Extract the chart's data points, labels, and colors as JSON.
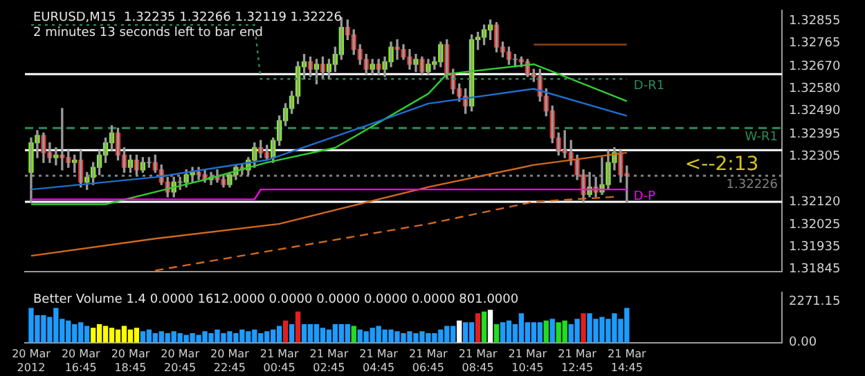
{
  "chart_data": [
    {
      "type": "candlestick",
      "title": "EURUSD,M15  1.32235 1.32266 1.32119 1.32226",
      "subtitle": "2 minutes 13 seconds left to bar end",
      "x": [
        "2012-03-20T14:45",
        "2012-03-20T15:00",
        "2012-03-20T15:15",
        "2012-03-20T15:30",
        "2012-03-20T15:45",
        "2012-03-20T16:00",
        "2012-03-20T16:15",
        "2012-03-20T16:30",
        "2012-03-20T16:45",
        "2012-03-20T17:00",
        "2012-03-20T17:15",
        "2012-03-20T17:30",
        "2012-03-20T17:45",
        "2012-03-20T18:00",
        "2012-03-20T18:15",
        "2012-03-20T18:30",
        "2012-03-20T18:45",
        "2012-03-20T19:00",
        "2012-03-20T19:15",
        "2012-03-20T19:30",
        "2012-03-20T19:45",
        "2012-03-20T20:00",
        "2012-03-20T20:15",
        "2012-03-20T20:30",
        "2012-03-20T20:45",
        "2012-03-20T21:00",
        "2012-03-20T21:15",
        "2012-03-20T21:30",
        "2012-03-20T21:45",
        "2012-03-20T22:00",
        "2012-03-20T22:15",
        "2012-03-20T22:30",
        "2012-03-20T22:45",
        "2012-03-20T23:00",
        "2012-03-20T23:15",
        "2012-03-20T23:30",
        "2012-03-20T23:45",
        "2012-03-21T00:00",
        "2012-03-21T00:15",
        "2012-03-21T00:30",
        "2012-03-21T00:45",
        "2012-03-21T01:00",
        "2012-03-21T01:15",
        "2012-03-21T01:30",
        "2012-03-21T01:45",
        "2012-03-21T02:00",
        "2012-03-21T02:15",
        "2012-03-21T02:30",
        "2012-03-21T02:45",
        "2012-03-21T03:00",
        "2012-03-21T03:15",
        "2012-03-21T03:30",
        "2012-03-21T03:45",
        "2012-03-21T04:00",
        "2012-03-21T04:15",
        "2012-03-21T04:30",
        "2012-03-21T04:45",
        "2012-03-21T05:00",
        "2012-03-21T05:15",
        "2012-03-21T05:30",
        "2012-03-21T05:45",
        "2012-03-21T06:00",
        "2012-03-21T06:15",
        "2012-03-21T06:30",
        "2012-03-21T06:45",
        "2012-03-21T07:00",
        "2012-03-21T07:15",
        "2012-03-21T07:30",
        "2012-03-21T07:45",
        "2012-03-21T08:00",
        "2012-03-21T08:15",
        "2012-03-21T08:30",
        "2012-03-21T08:45",
        "2012-03-21T09:00",
        "2012-03-21T09:15",
        "2012-03-21T09:30",
        "2012-03-21T09:45",
        "2012-03-21T10:00",
        "2012-03-21T10:15",
        "2012-03-21T10:30",
        "2012-03-21T10:45",
        "2012-03-21T11:00",
        "2012-03-21T11:15",
        "2012-03-21T11:30",
        "2012-03-21T11:45",
        "2012-03-21T12:00",
        "2012-03-21T12:15",
        "2012-03-21T12:30",
        "2012-03-21T12:45",
        "2012-03-21T13:00",
        "2012-03-21T13:15",
        "2012-03-21T13:30",
        "2012-03-21T13:45",
        "2012-03-21T14:00",
        "2012-03-21T14:15",
        "2012-03-21T14:30",
        "2012-03-21T14:45"
      ],
      "ohlc": [
        [
          1.3224,
          1.3238,
          1.3212,
          1.3236
        ],
        [
          1.3236,
          1.3241,
          1.323,
          1.3239
        ],
        [
          1.3239,
          1.324,
          1.3228,
          1.3232
        ],
        [
          1.3232,
          1.3236,
          1.3228,
          1.323
        ],
        [
          1.323,
          1.3234,
          1.3227,
          1.3231
        ],
        [
          1.3231,
          1.325,
          1.3225,
          1.323
        ],
        [
          1.323,
          1.3233,
          1.3226,
          1.3228
        ],
        [
          1.3228,
          1.3231,
          1.3224,
          1.3229
        ],
        [
          1.3229,
          1.3233,
          1.3218,
          1.322
        ],
        [
          1.322,
          1.3224,
          1.3217,
          1.3222
        ],
        [
          1.3222,
          1.3228,
          1.3219,
          1.3226
        ],
        [
          1.3226,
          1.3233,
          1.3223,
          1.3231
        ],
        [
          1.3231,
          1.3238,
          1.3228,
          1.3236
        ],
        [
          1.3236,
          1.3243,
          1.3233,
          1.324
        ],
        [
          1.324,
          1.3242,
          1.3229,
          1.3231
        ],
        [
          1.3231,
          1.3234,
          1.3224,
          1.3226
        ],
        [
          1.3226,
          1.3231,
          1.3224,
          1.3229
        ],
        [
          1.3229,
          1.3231,
          1.3223,
          1.3225
        ],
        [
          1.3225,
          1.323,
          1.3224,
          1.3228
        ],
        [
          1.3228,
          1.323,
          1.3226,
          1.3228
        ],
        [
          1.3228,
          1.3231,
          1.3224,
          1.3225
        ],
        [
          1.3225,
          1.3227,
          1.3219,
          1.322
        ],
        [
          1.322,
          1.3222,
          1.3214,
          1.3216
        ],
        [
          1.3216,
          1.3222,
          1.3214,
          1.322
        ],
        [
          1.322,
          1.3222,
          1.3217,
          1.322
        ],
        [
          1.322,
          1.3225,
          1.3218,
          1.3223
        ],
        [
          1.3223,
          1.3226,
          1.322,
          1.3224
        ],
        [
          1.3224,
          1.3226,
          1.3221,
          1.3223
        ],
        [
          1.3223,
          1.3225,
          1.322,
          1.3221
        ],
        [
          1.3221,
          1.3224,
          1.3219,
          1.3222
        ],
        [
          1.3222,
          1.3225,
          1.322,
          1.3221
        ],
        [
          1.3221,
          1.3223,
          1.3218,
          1.3219
        ],
        [
          1.3219,
          1.3224,
          1.3218,
          1.3223
        ],
        [
          1.3223,
          1.3227,
          1.3221,
          1.3226
        ],
        [
          1.3226,
          1.3227,
          1.3223,
          1.3225
        ],
        [
          1.3225,
          1.323,
          1.3223,
          1.3229
        ],
        [
          1.3229,
          1.3236,
          1.3226,
          1.3234
        ],
        [
          1.3234,
          1.3237,
          1.323,
          1.3232
        ],
        [
          1.3232,
          1.3235,
          1.3229,
          1.323
        ],
        [
          1.323,
          1.3238,
          1.3228,
          1.3237
        ],
        [
          1.3237,
          1.3247,
          1.3235,
          1.3245
        ],
        [
          1.3245,
          1.3252,
          1.3243,
          1.325
        ],
        [
          1.325,
          1.3257,
          1.3248,
          1.3255
        ],
        [
          1.3255,
          1.3269,
          1.3252,
          1.3267
        ],
        [
          1.3267,
          1.3272,
          1.3262,
          1.3269
        ],
        [
          1.3269,
          1.3271,
          1.3263,
          1.3266
        ],
        [
          1.3266,
          1.327,
          1.326,
          1.3268
        ],
        [
          1.3268,
          1.3271,
          1.3262,
          1.3265
        ],
        [
          1.3265,
          1.327,
          1.3262,
          1.3268
        ],
        [
          1.3268,
          1.3275,
          1.3265,
          1.3272
        ],
        [
          1.3272,
          1.3287,
          1.327,
          1.3283
        ],
        [
          1.3283,
          1.3286,
          1.3278,
          1.328
        ],
        [
          1.328,
          1.3282,
          1.3272,
          1.3274
        ],
        [
          1.3274,
          1.3276,
          1.3268,
          1.327
        ],
        [
          1.327,
          1.3272,
          1.3264,
          1.3266
        ],
        [
          1.3266,
          1.327,
          1.3264,
          1.3268
        ],
        [
          1.3268,
          1.327,
          1.3264,
          1.3266
        ],
        [
          1.3266,
          1.3271,
          1.3263,
          1.3269
        ],
        [
          1.3269,
          1.3277,
          1.3267,
          1.3275
        ],
        [
          1.3275,
          1.3278,
          1.327,
          1.3274
        ],
        [
          1.3274,
          1.3276,
          1.327,
          1.3271
        ],
        [
          1.3271,
          1.3274,
          1.3266,
          1.3268
        ],
        [
          1.3268,
          1.3272,
          1.3265,
          1.327
        ],
        [
          1.327,
          1.3271,
          1.3264,
          1.3265
        ],
        [
          1.3265,
          1.327,
          1.3264,
          1.3268
        ],
        [
          1.3268,
          1.3271,
          1.3266,
          1.3269
        ],
        [
          1.3269,
          1.3277,
          1.3267,
          1.3276
        ],
        [
          1.3276,
          1.3278,
          1.3262,
          1.3264
        ],
        [
          1.3264,
          1.3266,
          1.3256,
          1.3258
        ],
        [
          1.3258,
          1.326,
          1.3253,
          1.3255
        ],
        [
          1.3255,
          1.3258,
          1.3248,
          1.3251
        ],
        [
          1.3251,
          1.328,
          1.3249,
          1.3278
        ],
        [
          1.3278,
          1.3281,
          1.3274,
          1.3279
        ],
        [
          1.3279,
          1.3284,
          1.3276,
          1.3282
        ],
        [
          1.3282,
          1.3286,
          1.3278,
          1.3284
        ],
        [
          1.3284,
          1.3285,
          1.3273,
          1.3275
        ],
        [
          1.3275,
          1.3277,
          1.3271,
          1.3273
        ],
        [
          1.3273,
          1.3275,
          1.3268,
          1.327
        ],
        [
          1.327,
          1.3272,
          1.3267,
          1.327
        ],
        [
          1.327,
          1.3271,
          1.3267,
          1.3269
        ],
        [
          1.3269,
          1.327,
          1.3263,
          1.3264
        ],
        [
          1.3264,
          1.3266,
          1.3261,
          1.3263
        ],
        [
          1.3263,
          1.3266,
          1.3253,
          1.3255
        ],
        [
          1.3255,
          1.3258,
          1.3247,
          1.3249
        ],
        [
          1.3249,
          1.3251,
          1.3236,
          1.3238
        ],
        [
          1.3238,
          1.324,
          1.3231,
          1.3233
        ],
        [
          1.3233,
          1.3241,
          1.323,
          1.3232
        ],
        [
          1.3232,
          1.3237,
          1.3227,
          1.3229
        ],
        [
          1.3229,
          1.3231,
          1.3221,
          1.3223
        ],
        [
          1.3223,
          1.3225,
          1.3212,
          1.3215
        ],
        [
          1.3215,
          1.3224,
          1.3214,
          1.3218
        ],
        [
          1.3218,
          1.3222,
          1.3214,
          1.3216
        ],
        [
          1.3216,
          1.323,
          1.3215,
          1.3219
        ],
        [
          1.3219,
          1.3233,
          1.3217,
          1.3228
        ],
        [
          1.3228,
          1.3234,
          1.3225,
          1.3232
        ],
        [
          1.3232,
          1.3233,
          1.322,
          1.3223
        ],
        [
          1.32235,
          1.32266,
          1.32119,
          1.32226
        ]
      ],
      "series": [
        {
          "type": "line",
          "color": "#d2691e",
          "x": [
            "2012-03-20T14:45",
            "2012-03-20T19:45",
            "2012-03-21T00:45",
            "2012-03-21T06:45",
            "2012-03-21T11:00",
            "2012-03-21T14:45"
          ],
          "values": [
            1.319,
            1.3197,
            1.3203,
            1.3218,
            1.3227,
            1.3232
          ]
        },
        {
          "type": "line",
          "color": "#d2691e",
          "line_style": "dashed",
          "x": [
            "2012-03-20T19:45",
            "2012-03-21T06:45",
            "2012-03-21T11:00",
            "2012-03-21T14:15"
          ],
          "values": [
            1.3184,
            1.3203,
            1.3212,
            1.3214
          ]
        },
        {
          "type": "line",
          "color": "#32cd32",
          "x": [
            "2012-03-20T14:45",
            "2012-03-20T17:45",
            "2012-03-20T21:45",
            "2012-03-21T00:15",
            "2012-03-21T03:00",
            "2012-03-21T06:45",
            "2012-03-21T07:30",
            "2012-03-21T11:00",
            "2012-03-21T14:45"
          ],
          "values": [
            1.3211,
            1.3211,
            1.3221,
            1.3228,
            1.3234,
            1.3256,
            1.3264,
            1.3268,
            1.3253
          ]
        },
        {
          "type": "line",
          "color": "#1e6fd0",
          "x": [
            "2012-03-20T14:45",
            "2012-03-20T19:45",
            "2012-03-21T00:15",
            "2012-03-21T04:15",
            "2012-03-21T06:45",
            "2012-03-21T11:00",
            "2012-03-21T14:45"
          ],
          "values": [
            1.3217,
            1.3222,
            1.3229,
            1.3243,
            1.3252,
            1.3258,
            1.3247
          ]
        },
        {
          "type": "line",
          "name": "D-P",
          "color": "#ff00ff",
          "x": [
            "2012-03-20T14:45",
            "2012-03-20T23:45",
            "2012-03-21T00:00",
            "2012-03-21T14:45"
          ],
          "values": [
            1.3213,
            1.3213,
            1.3217,
            1.3217
          ]
        },
        {
          "type": "line",
          "name": "D-R1",
          "color": "#2e8b57",
          "line_style": "dotted",
          "x": [
            "2012-03-20T14:45",
            "2012-03-20T23:45",
            "2012-03-21T00:00",
            "2012-03-21T14:45"
          ],
          "values": [
            1.3284,
            1.3284,
            1.3262,
            1.3262
          ]
        },
        {
          "type": "line",
          "color": "#8b4513",
          "x": [
            "2012-03-21T11:00",
            "2012-03-21T14:45"
          ],
          "values": [
            1.3276,
            1.3276
          ]
        }
      ],
      "xlim": [
        "2012-03-20T14:30",
        "2012-03-21T21:00"
      ],
      "ylim": [
        1.31835,
        1.329
      ],
      "yticks": [
        1.32855,
        1.32765,
        {
          "value": 1.3267,
          "label": "1.32670"
        },
        {
          "value": 1.3258,
          "label": "1.32580"
        },
        {
          "value": 1.3249,
          "label": "1.32490"
        },
        1.32395,
        1.32305,
        {
          "value": 1.3212,
          "label": "1.32120"
        },
        1.32025,
        1.31935,
        1.31845
      ],
      "tick_labels": "y",
      "ref_lines": [
        {
          "axis": "y",
          "value": 1.3264,
          "color": "#ffffff"
        },
        {
          "axis": "y",
          "value": 1.3233,
          "color": "#ffffff"
        },
        {
          "axis": "y",
          "value": 1.3212,
          "color": "#ffffff"
        },
        {
          "axis": "y",
          "value": 1.3242,
          "label": "W-R1",
          "color": "#2e8b57",
          "line_style": "dashed"
        },
        {
          "axis": "y",
          "value": 1.32226,
          "label": "1.32226",
          "color": "#808080",
          "line_style": "dotted"
        }
      ],
      "annotations": [
        {
          "text": "<--2:13",
          "x": "2012-03-21T14:45",
          "y": 1.32226
        }
      ]
    },
    {
      "type": "bar",
      "title": "Better Volume 1.4 0.0000 1612.0000 0.0000 0.0000 0.0000 0.0000 801.0000",
      "x": [
        "2012-03-20T14:45",
        "2012-03-20T15:00",
        "2012-03-20T15:15",
        "2012-03-20T15:30",
        "2012-03-20T15:45",
        "2012-03-20T16:00",
        "2012-03-20T16:15",
        "2012-03-20T16:30",
        "2012-03-20T16:45",
        "2012-03-20T17:00",
        "2012-03-20T17:15",
        "2012-03-20T17:30",
        "2012-03-20T17:45",
        "2012-03-20T18:00",
        "2012-03-20T18:15",
        "2012-03-20T18:30",
        "2012-03-20T18:45",
        "2012-03-20T19:00",
        "2012-03-20T19:15",
        "2012-03-20T19:30",
        "2012-03-20T19:45",
        "2012-03-20T20:00",
        "2012-03-20T20:15",
        "2012-03-20T20:30",
        "2012-03-20T20:45",
        "2012-03-20T21:00",
        "2012-03-20T21:15",
        "2012-03-20T21:30",
        "2012-03-20T21:45",
        "2012-03-20T22:00",
        "2012-03-20T22:15",
        "2012-03-20T22:30",
        "2012-03-20T22:45",
        "2012-03-20T23:00",
        "2012-03-20T23:15",
        "2012-03-20T23:30",
        "2012-03-20T23:45",
        "2012-03-21T00:00",
        "2012-03-21T00:15",
        "2012-03-21T00:30",
        "2012-03-21T00:45",
        "2012-03-21T01:00",
        "2012-03-21T01:15",
        "2012-03-21T01:30",
        "2012-03-21T01:45",
        "2012-03-21T02:00",
        "2012-03-21T02:15",
        "2012-03-21T02:30",
        "2012-03-21T02:45",
        "2012-03-21T03:00",
        "2012-03-21T03:15",
        "2012-03-21T03:30",
        "2012-03-21T03:45",
        "2012-03-21T04:00",
        "2012-03-21T04:15",
        "2012-03-21T04:30",
        "2012-03-21T04:45",
        "2012-03-21T05:00",
        "2012-03-21T05:15",
        "2012-03-21T05:30",
        "2012-03-21T05:45",
        "2012-03-21T06:00",
        "2012-03-21T06:15",
        "2012-03-21T06:30",
        "2012-03-21T06:45",
        "2012-03-21T07:00",
        "2012-03-21T07:15",
        "2012-03-21T07:30",
        "2012-03-21T07:45",
        "2012-03-21T08:00",
        "2012-03-21T08:15",
        "2012-03-21T08:30",
        "2012-03-21T08:45",
        "2012-03-21T09:00",
        "2012-03-21T09:15",
        "2012-03-21T09:30",
        "2012-03-21T09:45",
        "2012-03-21T10:00",
        "2012-03-21T10:15",
        "2012-03-21T10:30",
        "2012-03-21T10:45",
        "2012-03-21T11:00",
        "2012-03-21T11:15",
        "2012-03-21T11:30",
        "2012-03-21T11:45",
        "2012-03-21T12:00",
        "2012-03-21T12:15",
        "2012-03-21T12:30",
        "2012-03-21T12:45",
        "2012-03-21T13:00",
        "2012-03-21T13:15",
        "2012-03-21T13:30",
        "2012-03-21T13:45",
        "2012-03-21T14:00",
        "2012-03-21T14:15",
        "2012-03-21T14:30",
        "2012-03-21T14:45"
      ],
      "values": [
        1900,
        1500,
        1500,
        1400,
        1900,
        1300,
        1200,
        1000,
        1100,
        900,
        800,
        1000,
        900,
        800,
        700,
        900,
        700,
        800,
        600,
        700,
        500,
        600,
        500,
        600,
        500,
        400,
        500,
        400,
        600,
        500,
        700,
        500,
        600,
        500,
        700,
        600,
        700,
        500,
        600,
        700,
        900,
        1200,
        1000,
        1700,
        1000,
        1000,
        1000,
        800,
        700,
        1000,
        1000,
        1000,
        900,
        700,
        600,
        800,
        900,
        700,
        700,
        600,
        500,
        600,
        500,
        600,
        500,
        500,
        700,
        900,
        900,
        1200,
        1100,
        1100,
        1600,
        1700,
        1800,
        1000,
        1100,
        1200,
        1000,
        1600,
        1100,
        1100,
        1100,
        1200,
        1300,
        1100,
        1200,
        1000,
        1300,
        1600,
        1600,
        1300,
        1400,
        1300,
        1600,
        1300,
        1900
      ],
      "colors": [
        "#1e9bff",
        "#1e9bff",
        "#1e9bff",
        "#1e9bff",
        "#1e9bff",
        "#1e9bff",
        "#1e9bff",
        "#1e9bff",
        "#1e9bff",
        "#1e9bff",
        "#ffff00",
        "#ffff00",
        "#ffff00",
        "#ffff00",
        "#ffff00",
        "#ffff00",
        "#ffff00",
        "#ffff00",
        "#1e9bff",
        "#1e9bff",
        "#1e9bff",
        "#1e9bff",
        "#1e9bff",
        "#1e9bff",
        "#1e9bff",
        "#1e9bff",
        "#1e9bff",
        "#1e9bff",
        "#1e9bff",
        "#1e9bff",
        "#1e9bff",
        "#1e9bff",
        "#1e9bff",
        "#1e9bff",
        "#1e9bff",
        "#1e9bff",
        "#1e9bff",
        "#1e9bff",
        "#1e9bff",
        "#1e9bff",
        "#1e9bff",
        "#e02020",
        "#1e9bff",
        "#e02020",
        "#1e9bff",
        "#1e9bff",
        "#1e9bff",
        "#1e9bff",
        "#1e9bff",
        "#1e9bff",
        "#1e9bff",
        "#1e9bff",
        "#22dd22",
        "#1e9bff",
        "#1e9bff",
        "#1e9bff",
        "#1e9bff",
        "#1e9bff",
        "#1e9bff",
        "#1e9bff",
        "#1e9bff",
        "#1e9bff",
        "#1e9bff",
        "#1e9bff",
        "#1e9bff",
        "#1e9bff",
        "#1e9bff",
        "#1e9bff",
        "#1e9bff",
        "#ffffff",
        "#1e9bff",
        "#1e9bff",
        "#e02020",
        "#22dd22",
        "#ffffff",
        "#22dd22",
        "#1e9bff",
        "#1e9bff",
        "#1e9bff",
        "#1e9bff",
        "#1e9bff",
        "#1e9bff",
        "#1e9bff",
        "#22dd22",
        "#1e9bff",
        "#22dd22",
        "#22dd22",
        "#1e9bff",
        "#1e9bff",
        "#e02020",
        "#1e9bff",
        "#1e9bff",
        "#1e9bff",
        "#1e9bff",
        "#1e9bff",
        "#1e9bff",
        "#1e9bff"
      ],
      "xlim": [
        "2012-03-20T14:30",
        "2012-03-21T21:00"
      ],
      "xticks": [
        {
          "value": "2012-03-20T14:45",
          "label": "20 Mar 2012"
        },
        {
          "value": "2012-03-20T16:45",
          "label": "20 Mar 16:45"
        },
        {
          "value": "2012-03-20T18:45",
          "label": "20 Mar 18:45"
        },
        {
          "value": "2012-03-20T20:45",
          "label": "20 Mar 20:45"
        },
        {
          "value": "2012-03-20T22:45",
          "label": "20 Mar 22:45"
        },
        {
          "value": "2012-03-21T00:45",
          "label": "21 Mar 00:45"
        },
        {
          "value": "2012-03-21T02:45",
          "label": "21 Mar 02:45"
        },
        {
          "value": "2012-03-21T04:45",
          "label": "21 Mar 04:45"
        },
        {
          "value": "2012-03-21T06:45",
          "label": "21 Mar 06:45"
        },
        {
          "value": "2012-03-21T08:45",
          "label": "21 Mar 08:45"
        },
        {
          "value": "2012-03-21T10:45",
          "label": "21 Mar 10:45"
        },
        {
          "value": "2012-03-21T12:45",
          "label": "21 Mar 12:45"
        },
        {
          "value": "2012-03-21T14:45",
          "label": "21 Mar 14:45"
        }
      ],
      "ylim": [
        0,
        2800
      ],
      "yticks": [
        {
          "value": 2271.15,
          "label": "2271.15"
        },
        {
          "value": 0,
          "label": "0.00"
        }
      ]
    }
  ]
}
